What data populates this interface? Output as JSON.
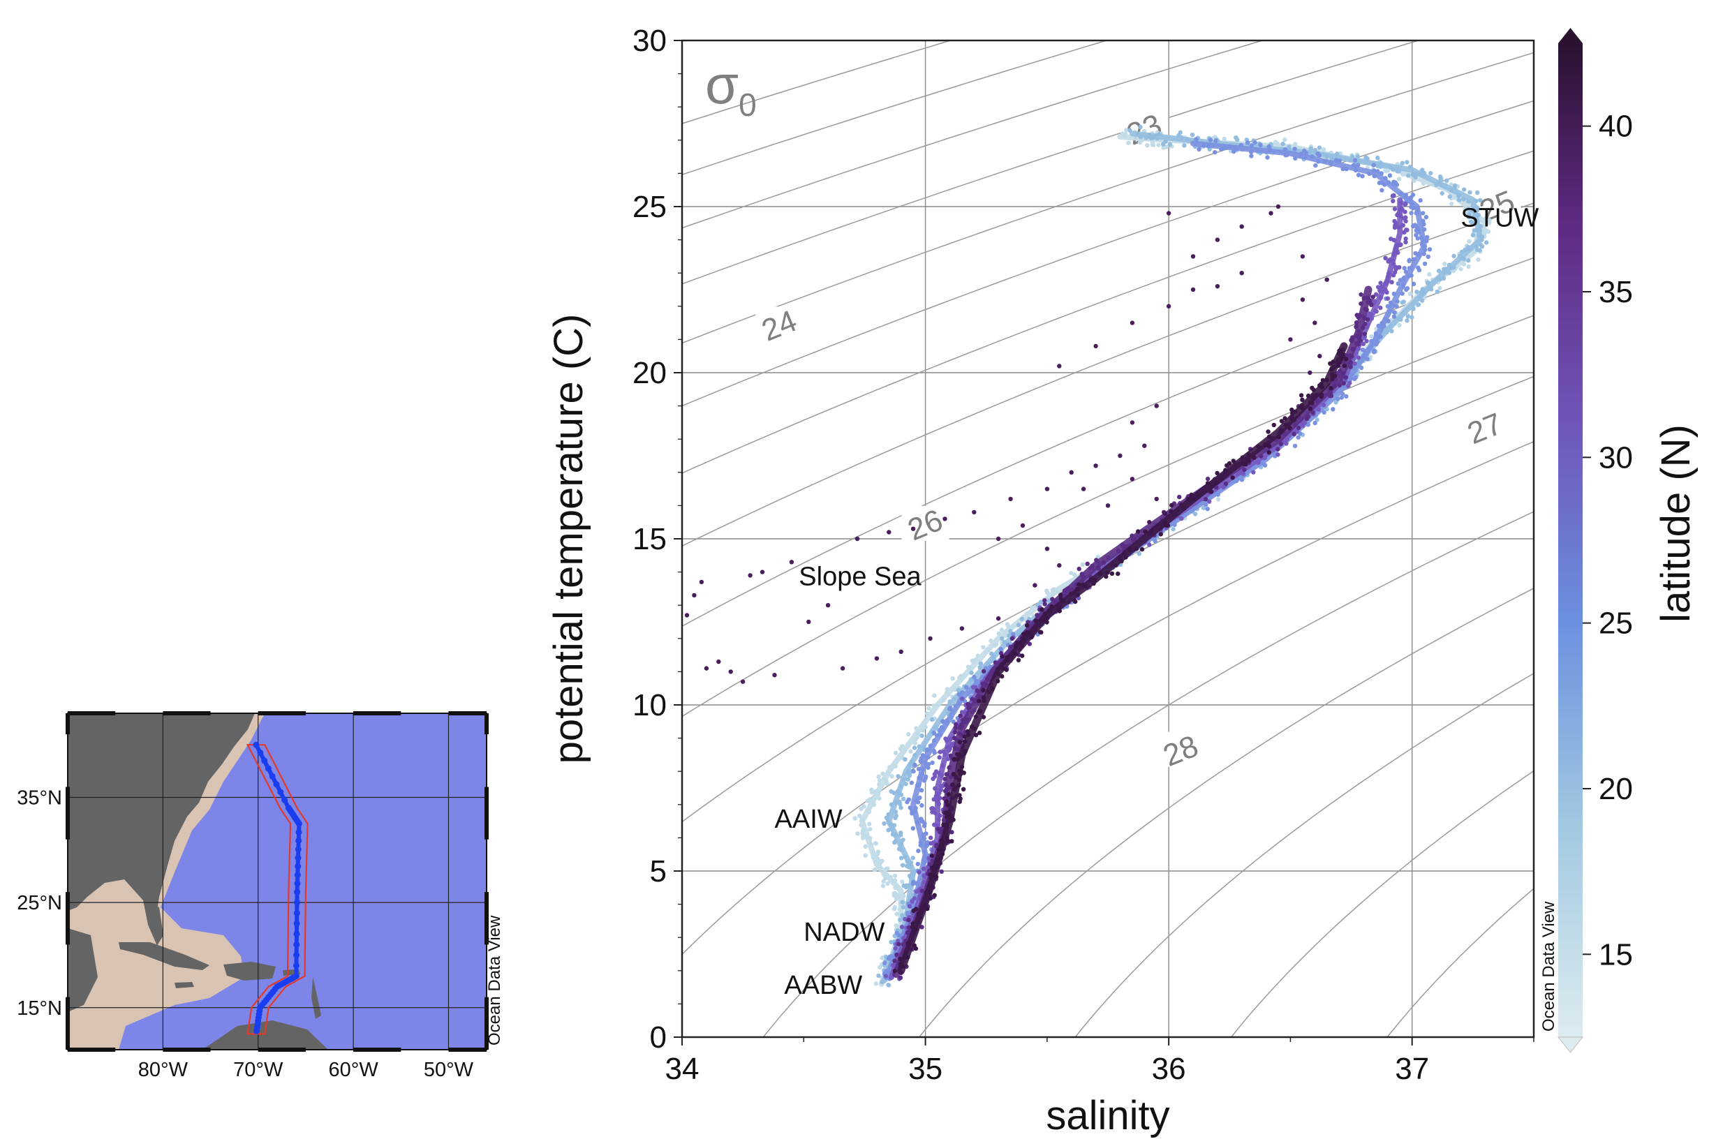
{
  "chart_data": [
    {
      "type": "scatter",
      "title": "",
      "xlabel": "salinity",
      "ylabel": "potential temperature (C)",
      "xlim": [
        34,
        37.5
      ],
      "ylim": [
        0,
        30
      ],
      "x_ticks": [
        "34",
        "35",
        "36",
        "37"
      ],
      "y_ticks": [
        "0",
        "5",
        "10",
        "15",
        "20",
        "25",
        "30"
      ],
      "grid": true,
      "contour_label": "σ",
      "contour_label_sub": "0",
      "isopycnals": [
        {
          "label": "23",
          "value": 23,
          "label_at": [
            35.9,
            27.3
          ]
        },
        {
          "label": "24",
          "value": 24,
          "label_at": [
            34.4,
            21.4
          ]
        },
        {
          "label": "25",
          "value": 25,
          "label_at": [
            37.35,
            25.0
          ]
        },
        {
          "label": "26",
          "value": 26,
          "label_at": [
            35.0,
            15.4
          ]
        },
        {
          "label": "27",
          "value": 27,
          "label_at": [
            37.3,
            18.3
          ]
        },
        {
          "label": "28",
          "value": 28,
          "label_at": [
            36.05,
            8.6
          ]
        }
      ],
      "water_masses": [
        {
          "name": "STUW",
          "at": [
            37.2,
            24.4
          ]
        },
        {
          "name": "Slope Sea",
          "at": [
            34.48,
            13.6
          ]
        },
        {
          "name": "AAIW",
          "at": [
            34.38,
            6.3
          ]
        },
        {
          "name": "NADW",
          "at": [
            34.5,
            2.9
          ]
        },
        {
          "name": "AABW",
          "at": [
            34.42,
            1.3
          ]
        }
      ],
      "colorbar": {
        "label": "latitude (N)",
        "range": [
          12.5,
          42.5
        ],
        "ticks": [
          "15",
          "20",
          "25",
          "30",
          "35",
          "40"
        ],
        "stops": [
          "#dcebee",
          "#9fc7e0",
          "#6b8fe0",
          "#6f55b8",
          "#5e2a82",
          "#2a1230"
        ],
        "watermark": "Ocean Data View"
      },
      "series": [
        {
          "latitude": 15,
          "color": "#c2dbe8",
          "path": [
            [
              34.82,
              1.6
            ],
            [
              34.9,
              3.2
            ],
            [
              34.9,
              4.4
            ],
            [
              34.8,
              5.2
            ],
            [
              34.74,
              6.5
            ],
            [
              34.85,
              8.0
            ],
            [
              35.05,
              10.0
            ],
            [
              35.3,
              12.0
            ],
            [
              35.55,
              13.5
            ],
            [
              35.9,
              15.0
            ],
            [
              36.3,
              17.0
            ],
            [
              36.6,
              19.0
            ],
            [
              36.85,
              21.0
            ],
            [
              37.05,
              22.5
            ],
            [
              37.25,
              23.6
            ],
            [
              37.3,
              24.5
            ],
            [
              37.15,
              25.5
            ],
            [
              36.9,
              26.2
            ],
            [
              36.5,
              26.8
            ],
            [
              36.0,
              27.0
            ],
            [
              35.8,
              27.1
            ]
          ]
        },
        {
          "latitude": 20,
          "color": "#93bde0",
          "path": [
            [
              34.83,
              1.7
            ],
            [
              34.92,
              3.5
            ],
            [
              34.95,
              5.0
            ],
            [
              34.85,
              6.5
            ],
            [
              34.92,
              8.0
            ],
            [
              35.1,
              10.0
            ],
            [
              35.35,
              12.0
            ],
            [
              35.6,
              13.5
            ],
            [
              35.95,
              15.2
            ],
            [
              36.35,
              17.2
            ],
            [
              36.65,
              19.2
            ],
            [
              36.9,
              21.3
            ],
            [
              37.1,
              22.8
            ],
            [
              37.28,
              24.0
            ],
            [
              37.25,
              25.2
            ],
            [
              37.0,
              26.1
            ],
            [
              36.6,
              26.6
            ],
            [
              36.2,
              26.9
            ],
            [
              35.85,
              27.2
            ]
          ]
        },
        {
          "latitude": 25,
          "color": "#7a90e0",
          "path": [
            [
              34.84,
              1.8
            ],
            [
              34.95,
              3.8
            ],
            [
              35.0,
              5.5
            ],
            [
              34.95,
              7.0
            ],
            [
              35.0,
              8.4
            ],
            [
              35.15,
              10.2
            ],
            [
              35.4,
              12.0
            ],
            [
              35.65,
              13.6
            ],
            [
              36.0,
              15.4
            ],
            [
              36.4,
              17.4
            ],
            [
              36.7,
              19.4
            ],
            [
              36.85,
              21.0
            ],
            [
              36.95,
              22.5
            ],
            [
              37.05,
              23.8
            ],
            [
              37.02,
              25.0
            ],
            [
              36.85,
              26.0
            ],
            [
              36.5,
              26.6
            ],
            [
              36.1,
              26.9
            ]
          ]
        },
        {
          "latitude": 30,
          "color": "#7558c0",
          "path": [
            [
              34.86,
              1.8
            ],
            [
              34.97,
              4.0
            ],
            [
              35.05,
              6.0
            ],
            [
              35.05,
              7.5
            ],
            [
              35.1,
              9.0
            ],
            [
              35.25,
              10.8
            ],
            [
              35.45,
              12.5
            ],
            [
              35.7,
              14.0
            ],
            [
              36.05,
              15.8
            ],
            [
              36.45,
              17.8
            ],
            [
              36.72,
              19.8
            ],
            [
              36.82,
              21.5
            ],
            [
              36.9,
              22.8
            ],
            [
              36.95,
              24.2
            ],
            [
              36.95,
              25.2
            ]
          ]
        },
        {
          "latitude": 35,
          "color": "#5a2d84",
          "path": [
            [
              34.88,
              1.9
            ],
            [
              35.0,
              4.2
            ],
            [
              35.08,
              6.2
            ],
            [
              35.1,
              7.8
            ],
            [
              35.15,
              9.3
            ],
            [
              35.28,
              11.0
            ],
            [
              35.48,
              12.7
            ],
            [
              35.7,
              14.2
            ],
            [
              36.05,
              16.0
            ],
            [
              36.45,
              18.0
            ],
            [
              36.7,
              19.8
            ],
            [
              36.78,
              21.2
            ],
            [
              36.82,
              22.5
            ]
          ]
        },
        {
          "latitude": 40,
          "color": "#3a1746",
          "path": [
            [
              34.9,
              2.0
            ],
            [
              35.02,
              4.5
            ],
            [
              35.1,
              6.5
            ],
            [
              35.15,
              8.5
            ],
            [
              35.3,
              11.0
            ],
            [
              35.5,
              12.7
            ],
            [
              35.7,
              13.8
            ],
            [
              36.1,
              16.2
            ],
            [
              36.45,
              18.2
            ],
            [
              36.65,
              19.7
            ],
            [
              36.72,
              20.8
            ]
          ]
        }
      ],
      "slope_sea_points": [
        [
          34.02,
          12.7
        ],
        [
          34.05,
          13.3
        ],
        [
          34.08,
          13.7
        ],
        [
          34.1,
          11.1
        ],
        [
          34.15,
          11.3
        ],
        [
          34.2,
          11.0
        ],
        [
          34.25,
          10.7
        ],
        [
          34.28,
          13.9
        ],
        [
          34.33,
          14.0
        ],
        [
          34.38,
          10.9
        ],
        [
          34.45,
          14.3
        ],
        [
          34.52,
          12.5
        ],
        [
          34.6,
          13.0
        ],
        [
          34.66,
          11.1
        ],
        [
          34.72,
          15.0
        ],
        [
          34.8,
          11.4
        ],
        [
          34.85,
          15.2
        ],
        [
          34.9,
          11.6
        ],
        [
          34.95,
          15.3
        ],
        [
          35.02,
          12.0
        ],
        [
          35.08,
          15.6
        ],
        [
          35.15,
          12.3
        ],
        [
          35.2,
          15.8
        ],
        [
          35.3,
          12.6
        ],
        [
          35.35,
          16.2
        ],
        [
          35.45,
          13.6
        ],
        [
          35.5,
          16.5
        ],
        [
          35.55,
          14.2
        ],
        [
          35.6,
          17.0
        ],
        [
          35.65,
          16.5
        ],
        [
          35.7,
          17.2
        ],
        [
          35.75,
          16.0
        ],
        [
          35.8,
          17.5
        ],
        [
          35.85,
          16.8
        ],
        [
          35.9,
          17.8
        ],
        [
          35.92,
          15.5
        ],
        [
          35.95,
          16.2
        ],
        [
          35.98,
          15.8
        ],
        [
          35.55,
          20.2
        ],
        [
          35.7,
          20.8
        ],
        [
          35.85,
          21.5
        ],
        [
          36.0,
          22.0
        ],
        [
          36.1,
          22.5
        ],
        [
          36.2,
          22.6
        ],
        [
          35.95,
          19.0
        ],
        [
          35.85,
          18.5
        ],
        [
          36.0,
          24.8
        ],
        [
          36.1,
          23.5
        ],
        [
          36.3,
          23.0
        ],
        [
          36.42,
          24.8
        ],
        [
          36.45,
          25.0
        ],
        [
          36.55,
          22.2
        ],
        [
          36.6,
          21.5
        ],
        [
          36.62,
          20.5
        ],
        [
          36.58,
          20.0
        ],
        [
          36.5,
          21.0
        ],
        [
          36.55,
          23.5
        ],
        [
          36.65,
          22.8
        ],
        [
          36.2,
          24.0
        ],
        [
          36.3,
          24.4
        ],
        [
          35.3,
          15.0
        ],
        [
          35.4,
          15.4
        ],
        [
          35.5,
          14.7
        ]
      ]
    },
    {
      "type": "map",
      "x_ticks": [
        "80°W",
        "70°W",
        "60°W",
        "50°W"
      ],
      "y_ticks": [
        "35°N",
        "25°N",
        "15°N"
      ],
      "lon_range": [
        -90,
        -46
      ],
      "lat_range": [
        11,
        43
      ],
      "watermark": "Ocean Data View",
      "track": [
        [
          -70.2,
          40.0
        ],
        [
          -66.8,
          34.0
        ],
        [
          -65.7,
          32.5
        ],
        [
          -65.9,
          26.0
        ],
        [
          -66.0,
          18.0
        ],
        [
          -68.0,
          17.0
        ],
        [
          -69.8,
          15.0
        ],
        [
          -70.2,
          12.5
        ]
      ],
      "colors": {
        "ocean": "#7d86e8",
        "land": "#646464",
        "shelf": "#d9c3b3",
        "track": "#1b3df0",
        "box": "#e23a2a"
      }
    }
  ]
}
